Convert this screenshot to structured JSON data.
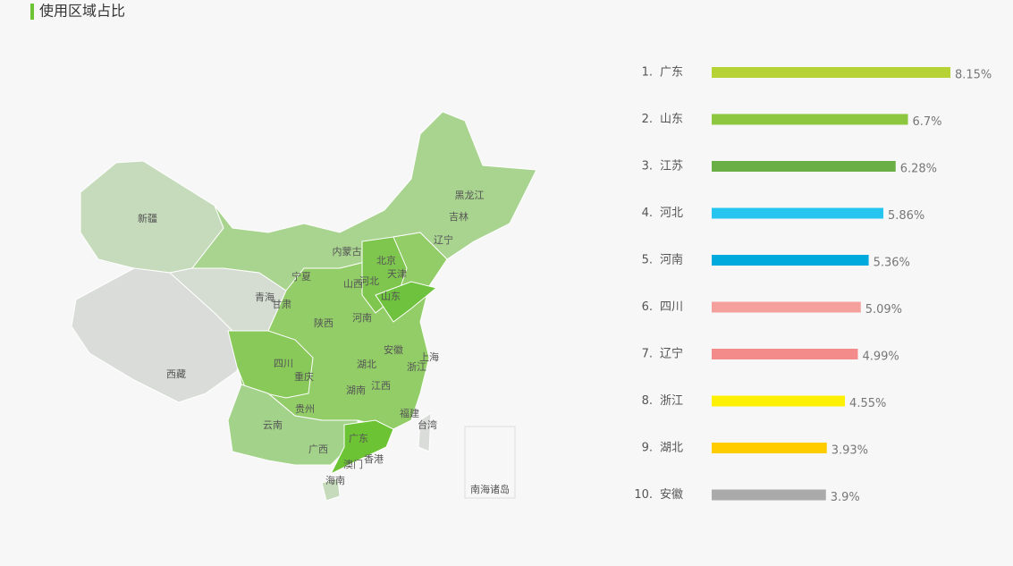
{
  "title": "使用区域占比",
  "map": {
    "labels": [
      "新疆",
      "西藏",
      "青海",
      "甘肃",
      "宁夏",
      "内蒙古",
      "黑龙江",
      "吉林",
      "辽宁",
      "北京",
      "天津",
      "河北",
      "山西",
      "山东",
      "陕西",
      "河南",
      "安徽",
      "上海",
      "浙江",
      "湖北",
      "四川",
      "重庆",
      "湖南",
      "江西",
      "贵州",
      "福建",
      "台湾",
      "云南",
      "广西",
      "广东",
      "澳门",
      "香港",
      "海南"
    ],
    "inset_label": "南海诸岛"
  },
  "chart_data": {
    "type": "bar",
    "orientation": "horizontal",
    "rank_labels": [
      "1.",
      "2.",
      "3.",
      "4.",
      "5.",
      "6.",
      "7.",
      "8.",
      "9.",
      "10."
    ],
    "categories": [
      "广东",
      "山东",
      "江苏",
      "河北",
      "河南",
      "四川",
      "辽宁",
      "浙江",
      "湖北",
      "安徽"
    ],
    "values": [
      8.15,
      6.7,
      6.28,
      5.86,
      5.36,
      5.09,
      4.99,
      4.55,
      3.93,
      3.9
    ],
    "value_labels": [
      "8.15%",
      "6.7%",
      "6.28%",
      "5.86%",
      "5.36%",
      "5.09%",
      "4.99%",
      "4.55%",
      "3.93%",
      "3.9%"
    ],
    "colors": [
      "#b5d334",
      "#8dc63f",
      "#6aaf45",
      "#26c5f0",
      "#00aadc",
      "#f4a09c",
      "#f38b8b",
      "#fdf000",
      "#ffcc00",
      "#aaaaaa"
    ]
  }
}
